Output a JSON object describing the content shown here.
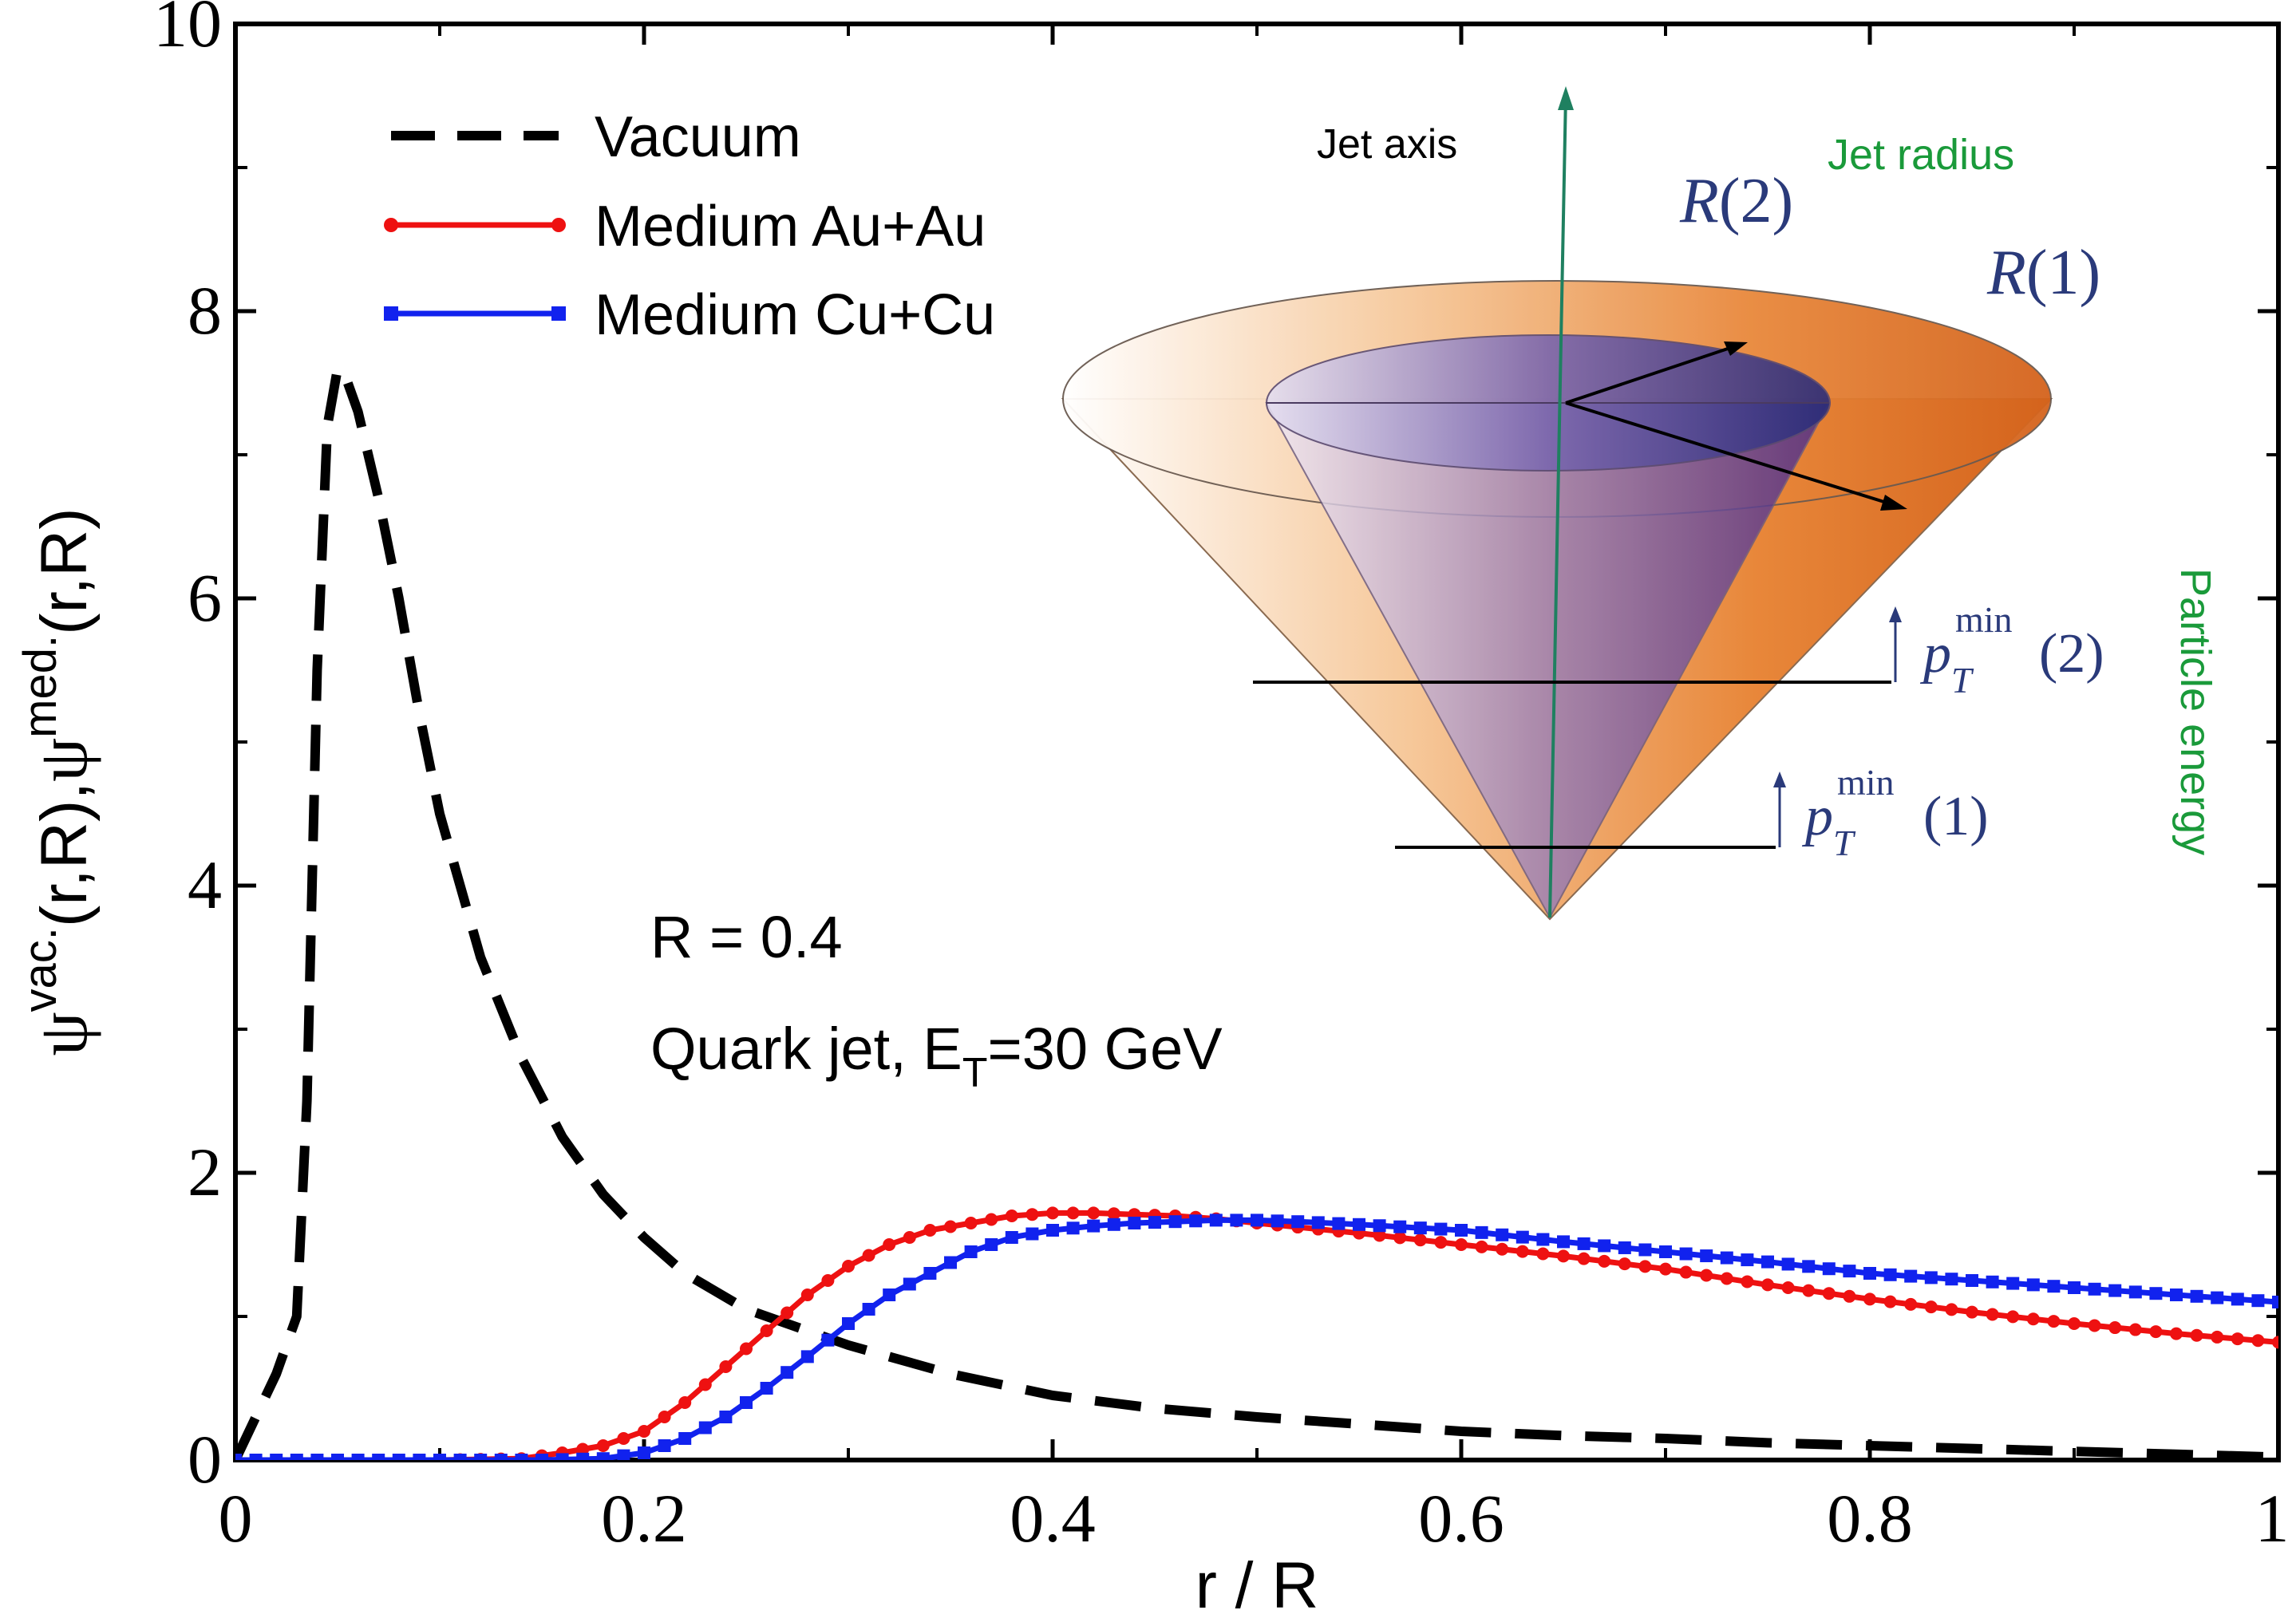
{
  "chart_data": {
    "type": "line",
    "xlabel": "r / R",
    "ylabel": "ψvac.(r,R), ψmed.(r,R)",
    "ylabel_parts": {
      "psi": "ψ",
      "vac_sup": "vac.",
      "vac_args": "(r,R),",
      "med_sup": "med.",
      "med_args": "(r,R)"
    },
    "xlim": [
      0,
      1
    ],
    "ylim": [
      0,
      10
    ],
    "x_ticks": [
      0,
      0.2,
      0.4,
      0.6,
      0.8,
      1
    ],
    "x_tick_labels": [
      "0",
      "0.2",
      "0.4",
      "0.6",
      "0.8",
      "1"
    ],
    "y_ticks": [
      0,
      2,
      4,
      6,
      8,
      10
    ],
    "y_tick_labels": [
      "0",
      "2",
      "4",
      "6",
      "8",
      "10"
    ],
    "grid": false,
    "legend_position": "top-left",
    "series": [
      {
        "name": "Vacuum",
        "style": "dashed",
        "color": "#000000",
        "x": [
          0.0,
          0.01,
          0.02,
          0.03,
          0.035,
          0.04,
          0.045,
          0.05,
          0.055,
          0.06,
          0.07,
          0.08,
          0.09,
          0.1,
          0.12,
          0.14,
          0.16,
          0.18,
          0.2,
          0.22,
          0.25,
          0.28,
          0.3,
          0.35,
          0.4,
          0.45,
          0.5,
          0.55,
          0.6,
          0.65,
          0.7,
          0.75,
          0.8,
          0.85,
          0.9,
          0.95,
          1.0
        ],
        "y": [
          0.0,
          0.3,
          0.6,
          1.0,
          2.5,
          5.5,
          7.2,
          7.6,
          7.5,
          7.3,
          6.7,
          6.0,
          5.2,
          4.5,
          3.5,
          2.8,
          2.25,
          1.85,
          1.55,
          1.3,
          1.05,
          0.9,
          0.8,
          0.6,
          0.45,
          0.36,
          0.3,
          0.25,
          0.2,
          0.17,
          0.15,
          0.12,
          0.1,
          0.08,
          0.06,
          0.04,
          0.02
        ]
      },
      {
        "name": "Medium Au+Au",
        "style": "solid-circle",
        "color": "#ee1111",
        "x": [
          0.0,
          0.1,
          0.14,
          0.16,
          0.18,
          0.2,
          0.22,
          0.24,
          0.26,
          0.28,
          0.3,
          0.32,
          0.34,
          0.36,
          0.38,
          0.4,
          0.42,
          0.44,
          0.46,
          0.48,
          0.5,
          0.55,
          0.6,
          0.65,
          0.7,
          0.75,
          0.8,
          0.85,
          0.9,
          0.95,
          1.0
        ],
        "y": [
          0.0,
          0.0,
          0.01,
          0.05,
          0.1,
          0.2,
          0.4,
          0.65,
          0.9,
          1.15,
          1.35,
          1.5,
          1.6,
          1.65,
          1.7,
          1.72,
          1.72,
          1.71,
          1.7,
          1.68,
          1.65,
          1.58,
          1.5,
          1.42,
          1.33,
          1.22,
          1.12,
          1.03,
          0.95,
          0.88,
          0.82
        ]
      },
      {
        "name": "Medium Cu+Cu",
        "style": "solid-square",
        "color": "#1122ee",
        "x": [
          0.0,
          0.1,
          0.15,
          0.18,
          0.2,
          0.22,
          0.24,
          0.26,
          0.28,
          0.3,
          0.32,
          0.34,
          0.36,
          0.38,
          0.4,
          0.42,
          0.44,
          0.46,
          0.48,
          0.5,
          0.52,
          0.55,
          0.6,
          0.65,
          0.7,
          0.75,
          0.8,
          0.85,
          0.9,
          0.95,
          1.0
        ],
        "y": [
          0.0,
          0.0,
          0.0,
          0.01,
          0.05,
          0.15,
          0.3,
          0.5,
          0.72,
          0.95,
          1.15,
          1.3,
          1.45,
          1.55,
          1.6,
          1.63,
          1.65,
          1.66,
          1.67,
          1.67,
          1.66,
          1.64,
          1.6,
          1.52,
          1.45,
          1.38,
          1.3,
          1.25,
          1.2,
          1.15,
          1.1
        ]
      }
    ],
    "annotations": {
      "r_text": "R = 0.4",
      "quark_prefix": "Quark jet, E",
      "quark_sub": "T",
      "quark_suffix": "=30 GeV"
    },
    "inset": {
      "jet_axis": "Jet axis",
      "jet_radius": "Jet radius",
      "particle_energy": "Particle energy",
      "R": "R",
      "r2_arg": "(2)",
      "r1_arg": "(1)",
      "p": "p",
      "pt_sub": "T",
      "pt_sup": "min",
      "pt2_arg": "(2)",
      "pt1_arg": "(1)"
    }
  }
}
